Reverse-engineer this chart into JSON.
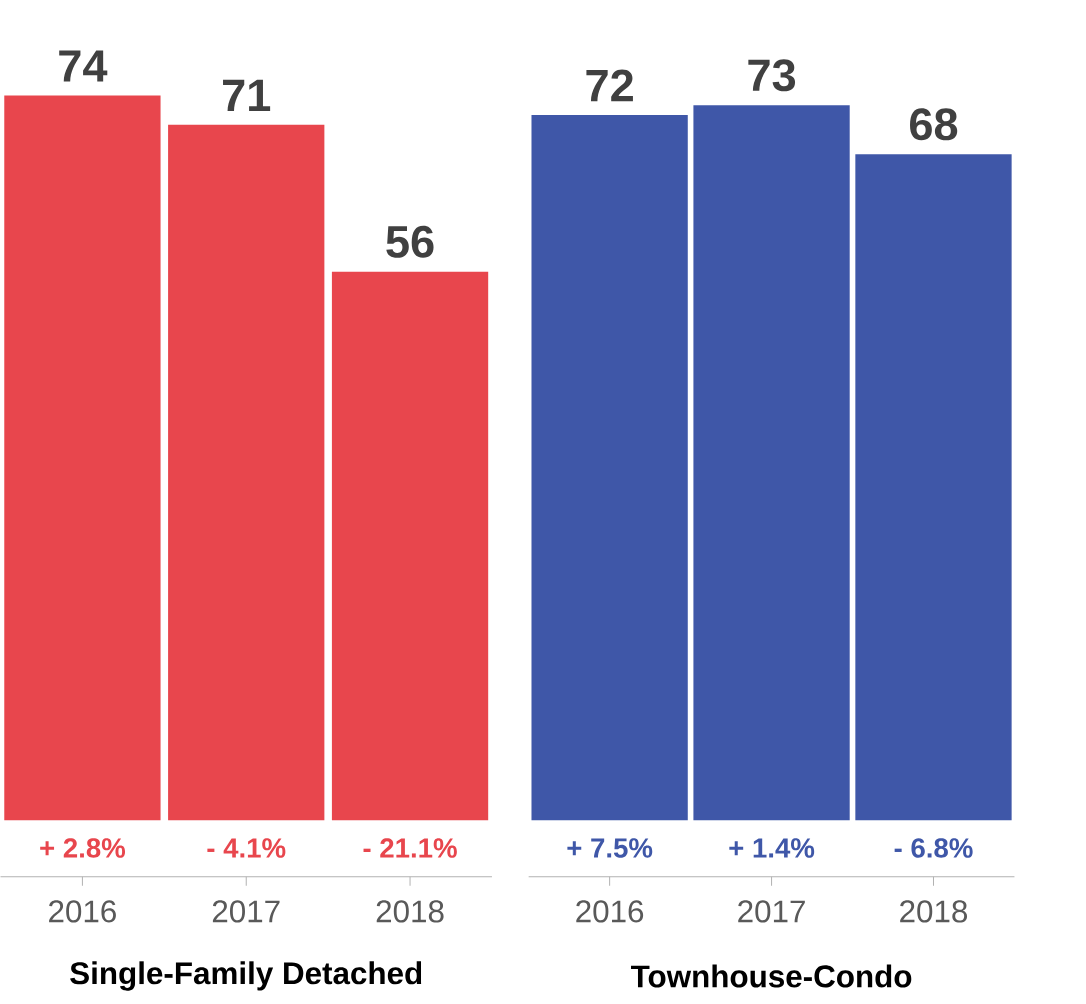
{
  "chart_data": [
    {
      "type": "bar",
      "xlabel": "Single-Family Detached",
      "categories": [
        "2016",
        "2017",
        "2018"
      ],
      "values": [
        74,
        71,
        56
      ],
      "color": "#e8464d",
      "data_labels": true,
      "annotations": [
        "+ 2.8%",
        "- 4.1%",
        "- 21.1%"
      ]
    },
    {
      "type": "bar",
      "xlabel": "Townhouse-Condo",
      "categories": [
        "2016",
        "2017",
        "2018"
      ],
      "values": [
        72,
        73,
        68
      ],
      "color": "#3f57a8",
      "data_labels": true,
      "annotations": [
        "+ 7.5%",
        "+ 1.4%",
        "- 6.8%"
      ]
    }
  ]
}
